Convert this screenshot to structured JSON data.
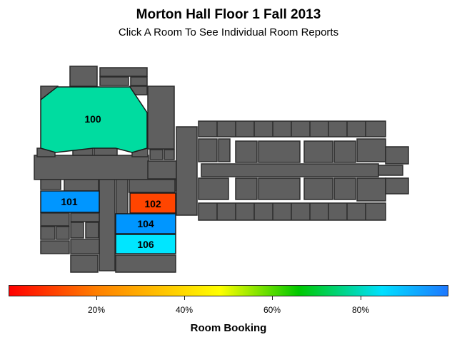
{
  "title": "Morton Hall Floor 1 Fall 2013",
  "subtitle": "Click A Room To See Individual Room Reports",
  "rooms": [
    {
      "id": "100",
      "booking_pct": 75,
      "color": "#00dca0"
    },
    {
      "id": "101",
      "booking_pct": 92,
      "color": "#0096ff"
    },
    {
      "id": "102",
      "booking_pct": 8,
      "color": "#ff4500"
    },
    {
      "id": "104",
      "booking_pct": 93,
      "color": "#0096ff"
    },
    {
      "id": "106",
      "booking_pct": 87,
      "color": "#00e6ff"
    }
  ],
  "legend": {
    "title": "Room Booking",
    "ticks": [
      "20%",
      "40%",
      "60%",
      "80%"
    ],
    "colors": [
      "#ff0000",
      "#ff8000",
      "#ffff00",
      "#00c800",
      "#00e0ff",
      "#1e78ff"
    ]
  }
}
